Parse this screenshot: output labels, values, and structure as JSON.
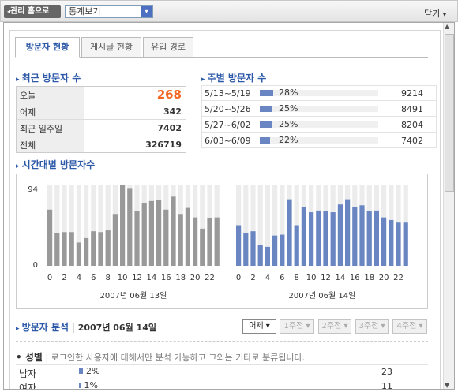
{
  "header": {
    "back_button": "관리 홈으로",
    "select": "통계보기",
    "close": "닫기"
  },
  "tabs": [
    "방문자 현황",
    "게시글 현황",
    "유입 경로"
  ],
  "recent": {
    "title": "최근 방문자 수",
    "rows": [
      {
        "label": "오늘",
        "value": 268
      },
      {
        "label": "어제",
        "value": 342
      },
      {
        "label": "최근 일주일",
        "value": 7402
      },
      {
        "label": "전체",
        "value": 326719
      }
    ]
  },
  "weekly": {
    "title": "주별 방문자 수",
    "rows": [
      {
        "range": "5/13~5/19",
        "percent": 28,
        "percent_label": "28%",
        "count": 9214
      },
      {
        "range": "5/20~5/26",
        "percent": 25,
        "percent_label": "25%",
        "count": 8491
      },
      {
        "range": "5/27~6/02",
        "percent": 25,
        "percent_label": "25%",
        "count": 8204
      },
      {
        "range": "6/03~6/09",
        "percent": 22,
        "percent_label": "22%",
        "count": 7402
      }
    ]
  },
  "hourly": {
    "title": "시간대별 방문자수",
    "type": "bar",
    "ylim": [
      0,
      94
    ],
    "yticks": [
      0,
      94
    ],
    "categories": [
      0,
      null,
      2,
      null,
      4,
      null,
      6,
      null,
      8,
      null,
      10,
      null,
      12,
      null,
      14,
      null,
      16,
      null,
      18,
      null,
      20,
      null,
      22,
      null
    ],
    "charts": [
      {
        "date": "2007년 06월 13일",
        "color": "#999999",
        "values": [
          65,
          38,
          39,
          39,
          27,
          32,
          40,
          39,
          41,
          60,
          94,
          90,
          63,
          73,
          75,
          76,
          65,
          80,
          60,
          67,
          56,
          43,
          55,
          56
        ]
      },
      {
        "date": "2007년 06월 14일",
        "color": "#6a86c2",
        "values": [
          47,
          38,
          40,
          24,
          22,
          35,
          36,
          77,
          47,
          68,
          62,
          64,
          63,
          62,
          71,
          77,
          68,
          70,
          63,
          64,
          56,
          53,
          50,
          50
        ]
      }
    ]
  },
  "analysis": {
    "title": "방문자 분석",
    "date": "2007년 06월 14일",
    "buttons": [
      "어제",
      "1주전",
      "2주전",
      "3주전",
      "4주전"
    ],
    "gender": {
      "title": "성별",
      "description": "로그인한 사용자에 대해서만 분석 가능하고 그외는 기타로 분류됩니다.",
      "rows": [
        {
          "label": "남자",
          "percent": 2,
          "percent_label": "2%",
          "count": 23
        },
        {
          "label": "여자",
          "percent": 1,
          "percent_label": "1%",
          "count": 11
        }
      ]
    }
  }
}
